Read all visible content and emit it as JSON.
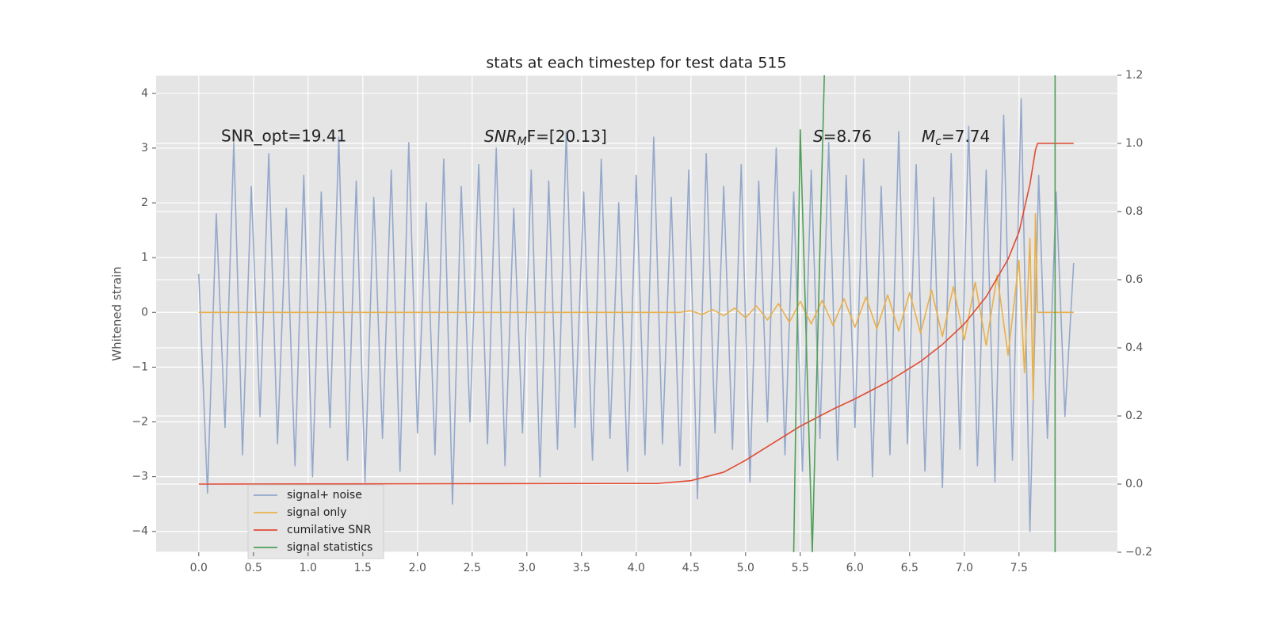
{
  "chart_data": {
    "type": "line",
    "title": "stats at each timestep for test data 515",
    "y_label": "Whitened strain",
    "annotations": [
      [
        "SNR_opt=19.41"
      ],
      [
        "SNR",
        "M",
        "F=[20.13]"
      ],
      [
        "S",
        "=8.76"
      ],
      [
        "M",
        "c",
        "=7.74"
      ]
    ],
    "xlim": [
      -0.39,
      8.4
    ],
    "ylim": [
      -4.38,
      4.33
    ],
    "y2lim": [
      -0.2,
      1.2
    ],
    "xticks": [
      {
        "value": 0,
        "label": "0.0"
      },
      0.5,
      {
        "value": 1,
        "label": "1.0"
      },
      1.5,
      {
        "value": 2,
        "label": "2.0"
      },
      2.5,
      {
        "value": 3,
        "label": "3.0"
      },
      3.5,
      {
        "value": 4,
        "label": "4.0"
      },
      4.5,
      {
        "value": 5,
        "label": "5.0"
      },
      5.5,
      {
        "value": 6,
        "label": "6.0"
      },
      6.5,
      {
        "value": 7,
        "label": "7.0"
      },
      7.5
    ],
    "yticks": [
      {
        "value": -4,
        "label": "−4"
      },
      {
        "value": -3,
        "label": "−3"
      },
      {
        "value": -2,
        "label": "−2"
      },
      {
        "value": -1,
        "label": "−1"
      },
      0,
      1,
      2,
      3,
      4
    ],
    "y2ticks": [
      {
        "value": -0.2,
        "label": "−0.2"
      },
      {
        "value": 0,
        "label": "0.0"
      },
      0.2,
      0.4,
      0.6,
      0.8,
      {
        "value": 1,
        "label": "1.0"
      },
      1.2
    ],
    "grid": true,
    "legend": "lower left",
    "series": [
      {
        "name": "signal+ noise",
        "color": "#94a8cb",
        "x": [
          0,
          0.08,
          0.16,
          0.24,
          0.32,
          0.4,
          0.48,
          0.56,
          0.64,
          0.72,
          0.8,
          0.88,
          0.96,
          1.04,
          1.12,
          1.2,
          1.28,
          1.36,
          1.44,
          1.52,
          1.6,
          1.68,
          1.76,
          1.84,
          1.92,
          2,
          2.08,
          2.16,
          2.24,
          2.32,
          2.4,
          2.48,
          2.56,
          2.64,
          2.72,
          2.8,
          2.88,
          2.96,
          3.04,
          3.12,
          3.2,
          3.28,
          3.36,
          3.44,
          3.52,
          3.6,
          3.68,
          3.76,
          3.84,
          3.92,
          4,
          4.08,
          4.16,
          4.24,
          4.32,
          4.4,
          4.48,
          4.56,
          4.64,
          4.72,
          4.8,
          4.88,
          4.96,
          5.04,
          5.12,
          5.2,
          5.28,
          5.36,
          5.44,
          5.52,
          5.6,
          5.68,
          5.76,
          5.84,
          5.92,
          6,
          6.08,
          6.16,
          6.24,
          6.32,
          6.4,
          6.48,
          6.56,
          6.64,
          6.72,
          6.8,
          6.88,
          6.96,
          7.04,
          7.12,
          7.2,
          7.28,
          7.36,
          7.44,
          7.52,
          7.6,
          7.68,
          7.76,
          7.84,
          7.92,
          8
        ],
        "values": [
          0.7,
          -3.3,
          1.8,
          -2.1,
          3.1,
          -2.6,
          2.3,
          -1.9,
          2.9,
          -2.4,
          1.9,
          -2.8,
          2.5,
          -3.0,
          2.2,
          -2.1,
          3.2,
          -2.7,
          2.4,
          -3.1,
          2.1,
          -2.3,
          2.6,
          -2.9,
          3.1,
          -2.2,
          2.0,
          -2.6,
          2.8,
          -3.5,
          2.3,
          -2.0,
          2.7,
          -2.4,
          3.0,
          -2.8,
          1.9,
          -2.2,
          2.6,
          -3.0,
          2.4,
          -2.5,
          3.3,
          -2.1,
          2.2,
          -2.7,
          2.8,
          -2.3,
          2.0,
          -2.9,
          2.5,
          -2.6,
          3.2,
          -2.4,
          2.1,
          -2.8,
          2.6,
          -3.4,
          2.9,
          -2.2,
          2.3,
          -2.5,
          2.7,
          -3.1,
          2.4,
          -2.0,
          3.0,
          -2.6,
          2.2,
          -2.9,
          2.6,
          -2.3,
          3.1,
          -2.7,
          2.5,
          -2.1,
          2.8,
          -3.0,
          2.3,
          -2.6,
          3.3,
          -2.4,
          2.7,
          -2.9,
          2.1,
          -3.2,
          2.9,
          -2.5,
          3.4,
          -2.8,
          2.6,
          -3.1,
          3.6,
          -2.7,
          3.9,
          -4.0,
          2.5,
          -2.3,
          2.2,
          -1.9,
          0.9
        ]
      },
      {
        "name": "signal only",
        "color": "#e9b04a",
        "x": [
          0,
          4.4,
          4.5,
          4.6,
          4.7,
          4.8,
          4.9,
          5.0,
          5.1,
          5.2,
          5.3,
          5.4,
          5.5,
          5.6,
          5.7,
          5.8,
          5.9,
          6.0,
          6.1,
          6.2,
          6.3,
          6.4,
          6.5,
          6.6,
          6.7,
          6.8,
          6.9,
          7.0,
          7.1,
          7.2,
          7.3,
          7.4,
          7.5,
          7.55,
          7.6,
          7.63,
          7.65,
          7.67,
          8.0
        ],
        "values": [
          0,
          0,
          0.03,
          -0.04,
          0.05,
          -0.06,
          0.08,
          -0.1,
          0.12,
          -0.14,
          0.16,
          -0.18,
          0.2,
          -0.21,
          0.22,
          -0.24,
          0.25,
          -0.27,
          0.28,
          -0.3,
          0.32,
          -0.34,
          0.36,
          -0.38,
          0.41,
          -0.44,
          0.47,
          -0.5,
          0.55,
          -0.6,
          0.68,
          -0.78,
          0.95,
          -1.1,
          1.35,
          -1.6,
          1.8,
          0,
          0
        ]
      },
      {
        "name": "cumilative SNR",
        "color": "#e24a33",
        "axis": "y2",
        "x": [
          0,
          4.2,
          4.5,
          4.8,
          5.0,
          5.2,
          5.5,
          5.8,
          6.0,
          6.3,
          6.6,
          6.8,
          7.0,
          7.2,
          7.4,
          7.5,
          7.6,
          7.65,
          7.67,
          8.0
        ],
        "values": [
          0,
          0.002,
          0.01,
          0.035,
          0.07,
          0.11,
          0.17,
          0.22,
          0.25,
          0.3,
          0.36,
          0.41,
          0.47,
          0.55,
          0.66,
          0.74,
          0.88,
          0.98,
          1.0,
          1.0
        ]
      },
      {
        "name": "signal statistics",
        "color": "#4f9f58",
        "axis": "y2",
        "x": [
          5.44,
          5.5,
          5.61,
          5.72,
          7.8,
          7.83,
          7.83
        ],
        "values": [
          -0.2,
          1.04,
          -0.2,
          1.2,
          null,
          1.2,
          -0.2
        ]
      }
    ]
  }
}
